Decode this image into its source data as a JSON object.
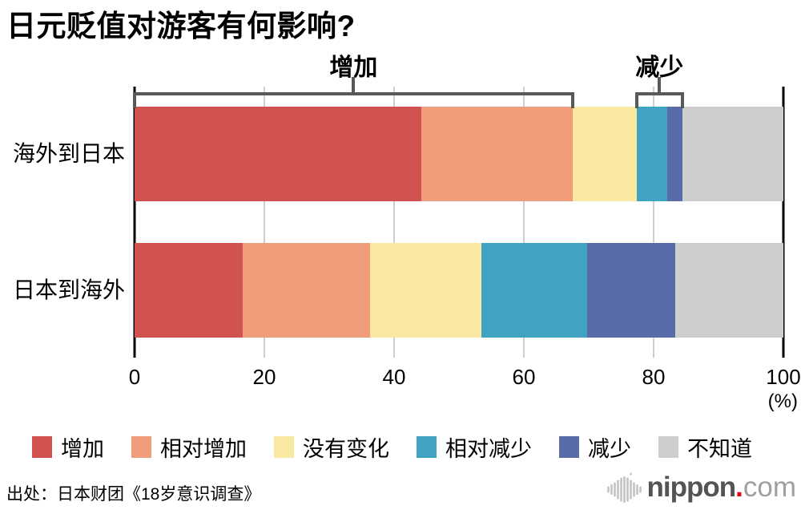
{
  "title": "日元贬值对游客有何影响?",
  "chart_data": {
    "type": "bar",
    "orientation": "horizontal-stacked",
    "title": "日元贬值对游客有何影响?",
    "categories": [
      "海外到日本",
      "日本到海外"
    ],
    "series": [
      {
        "name": "增加",
        "color": "#d15350",
        "values": [
          44.2,
          16.7
        ]
      },
      {
        "name": "相对增加",
        "color": "#f19d7b",
        "values": [
          23.3,
          19.6
        ]
      },
      {
        "name": "没有变化",
        "color": "#f8e8a2",
        "values": [
          9.9,
          17.2
        ]
      },
      {
        "name": "相对减少",
        "color": "#41a3c2",
        "values": [
          4.7,
          16.3
        ]
      },
      {
        "name": "减少",
        "color": "#5a6ba9",
        "values": [
          2.3,
          13.5
        ]
      },
      {
        "name": "不知道",
        "color": "#cecece",
        "values": [
          15.6,
          16.7
        ]
      }
    ],
    "x_ticks": [
      0,
      20,
      40,
      60,
      80,
      100
    ],
    "x_unit": "(%)",
    "xlim": [
      0,
      100
    ],
    "grid": "vertical-light-gray",
    "legend_position": "bottom",
    "brackets": [
      {
        "label": "增加",
        "bar_index": 0,
        "from_segment": 0,
        "to_segment": 1
      },
      {
        "label": "减少",
        "bar_index": 0,
        "from_segment": 3,
        "to_segment": 4
      }
    ]
  },
  "source": "出处：日本财团《18岁意识调查》",
  "logo": {
    "icon": "soundwave-icon",
    "name": "nippon",
    "dot": ".",
    "tld": "com",
    "name_color": "#545454",
    "dot_color": "#e60012",
    "tld_color": "#a0a0a0"
  }
}
